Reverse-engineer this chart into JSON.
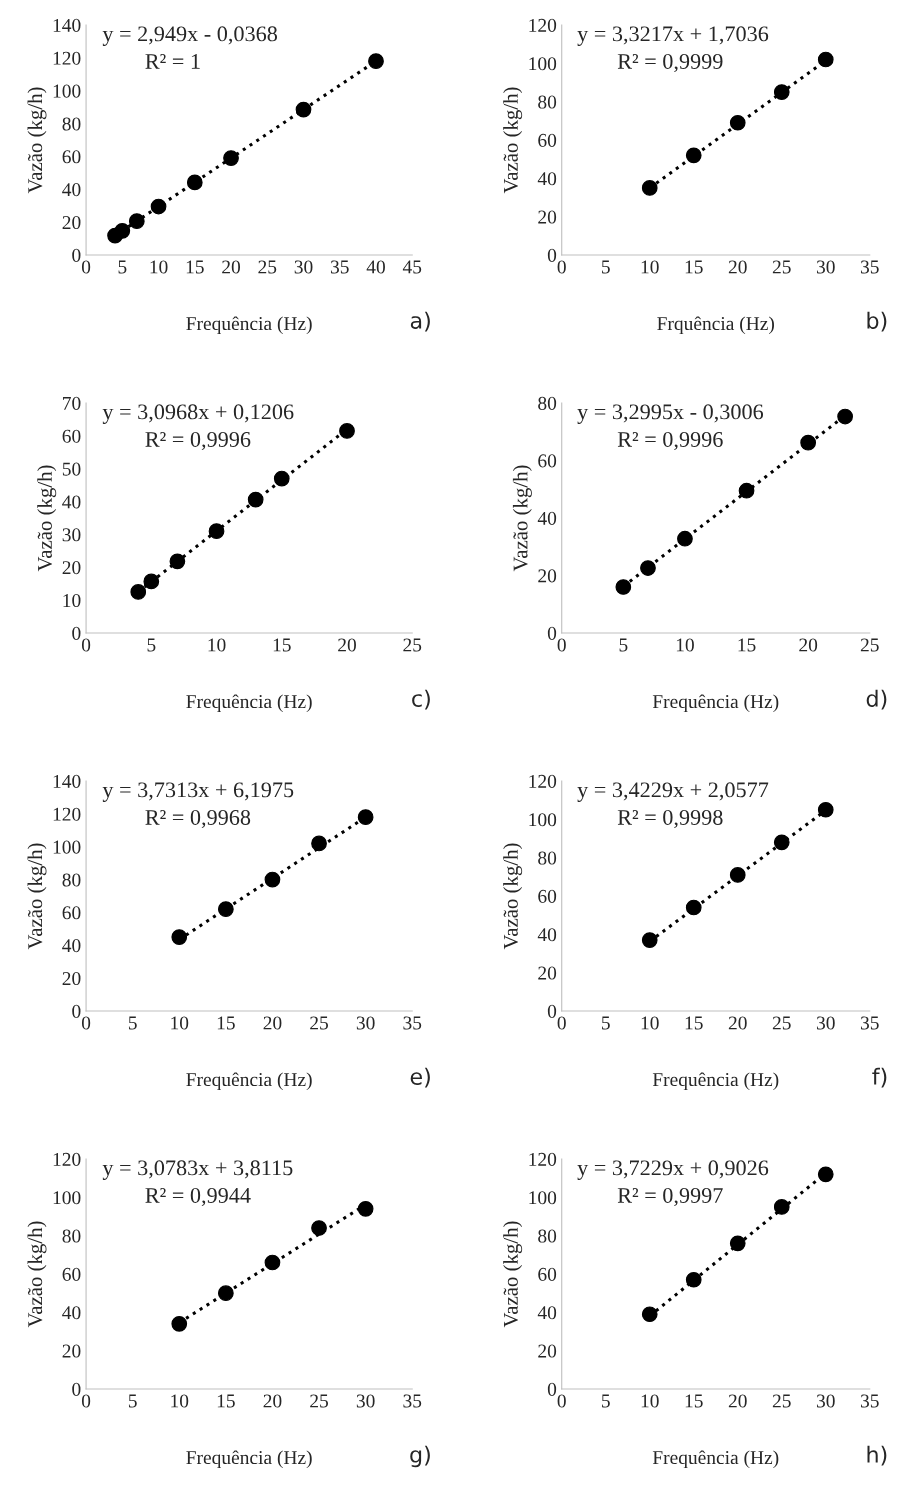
{
  "chart_data": [
    {
      "type": "scatter",
      "xlabel": "Frequência (Hz)",
      "ylabel": "Vazão (kg/h)",
      "xlim": [
        0,
        45
      ],
      "xticks": [
        0,
        5,
        10,
        15,
        20,
        25,
        30,
        35,
        40,
        45
      ],
      "ylim": [
        0,
        140
      ],
      "yticks": [
        0,
        20,
        40,
        60,
        80,
        100,
        120,
        140
      ],
      "grid": false,
      "legend": false,
      "annotations": [
        "y = 2,949x - 0,0368",
        "R² = 1",
        "a)"
      ],
      "series": [
        {
          "marker": "circle",
          "color": "#000000",
          "x": [
            4,
            5,
            7,
            10,
            15,
            20,
            30,
            40
          ],
          "values": [
            11.8,
            14.7,
            20.6,
            29.5,
            44.2,
            59,
            88.5,
            118
          ]
        },
        {
          "type": "line",
          "line_style": "dotted",
          "marker": "none",
          "color": "#000000",
          "x": [
            4,
            40
          ],
          "values": [
            11.8,
            118
          ]
        }
      ]
    },
    {
      "type": "scatter",
      "xlabel": "Frquência (Hz)",
      "ylabel": "Vazão (kg/h)",
      "xlim": [
        0,
        35
      ],
      "xticks": [
        0,
        5,
        10,
        15,
        20,
        25,
        30,
        35
      ],
      "ylim": [
        0,
        120
      ],
      "yticks": [
        0,
        20,
        40,
        60,
        80,
        100,
        120
      ],
      "grid": false,
      "legend": false,
      "annotations": [
        "y = 3,3217x + 1,7036",
        "R² = 0,9999",
        "b)"
      ],
      "series": [
        {
          "marker": "circle",
          "color": "#000000",
          "x": [
            10,
            15,
            20,
            25,
            30
          ],
          "values": [
            35,
            52,
            69,
            85,
            102
          ]
        },
        {
          "type": "line",
          "line_style": "dotted",
          "marker": "none",
          "color": "#000000",
          "x": [
            10,
            30
          ],
          "values": [
            35,
            101.4
          ]
        }
      ]
    },
    {
      "type": "scatter",
      "xlabel": "Frequência (Hz)",
      "ylabel": "Vazão (kg/h)",
      "xlim": [
        0,
        25
      ],
      "xticks": [
        0,
        5,
        10,
        15,
        20,
        25
      ],
      "ylim": [
        0,
        70
      ],
      "yticks": [
        0,
        10,
        20,
        30,
        40,
        50,
        60,
        70
      ],
      "grid": false,
      "legend": false,
      "annotations": [
        "y = 3,0968x + 0,1206",
        "R² = 0,9996",
        "c)"
      ],
      "series": [
        {
          "marker": "circle",
          "color": "#000000",
          "x": [
            4,
            5,
            7,
            10,
            13,
            15,
            20
          ],
          "values": [
            12.5,
            15.7,
            21.8,
            31,
            40.6,
            47,
            61.5
          ]
        },
        {
          "type": "line",
          "line_style": "dotted",
          "marker": "none",
          "color": "#000000",
          "x": [
            4,
            20
          ],
          "values": [
            12.5,
            62
          ]
        }
      ]
    },
    {
      "type": "scatter",
      "xlabel": "Frequência (Hz)",
      "ylabel": "Vazão (kg/h)",
      "xlim": [
        0,
        25
      ],
      "xticks": [
        0,
        5,
        10,
        15,
        20,
        25
      ],
      "ylim": [
        0,
        80
      ],
      "yticks": [
        0,
        20,
        40,
        60,
        80
      ],
      "grid": false,
      "legend": false,
      "annotations": [
        "y = 3,2995x - 0,3006",
        "R² = 0,9996",
        "d)"
      ],
      "series": [
        {
          "marker": "circle",
          "color": "#000000",
          "x": [
            5,
            7,
            10,
            15,
            20,
            23
          ],
          "values": [
            16,
            22.6,
            32.8,
            49.5,
            66.2,
            75.3
          ]
        },
        {
          "type": "line",
          "line_style": "dotted",
          "marker": "none",
          "color": "#000000",
          "x": [
            5,
            23
          ],
          "values": [
            16.2,
            75.6
          ]
        }
      ]
    },
    {
      "type": "scatter",
      "xlabel": "Frequência (Hz)",
      "ylabel": "Vazão (kg/h)",
      "xlim": [
        0,
        35
      ],
      "xticks": [
        0,
        5,
        10,
        15,
        20,
        25,
        30,
        35
      ],
      "ylim": [
        0,
        140
      ],
      "yticks": [
        0,
        20,
        40,
        60,
        80,
        100,
        120,
        140
      ],
      "grid": false,
      "legend": false,
      "annotations": [
        "y = 3,7313x + 6,1975",
        "R² = 0,9968",
        "e)"
      ],
      "series": [
        {
          "marker": "circle",
          "color": "#000000",
          "x": [
            10,
            15,
            20,
            25,
            30
          ],
          "values": [
            45,
            62,
            80,
            102,
            118
          ]
        },
        {
          "type": "line",
          "line_style": "dotted",
          "marker": "none",
          "color": "#000000",
          "x": [
            10,
            30
          ],
          "values": [
            43.5,
            118
          ]
        }
      ]
    },
    {
      "type": "scatter",
      "xlabel": "Frequência (Hz)",
      "ylabel": "Vazão (kg/h)",
      "xlim": [
        0,
        35
      ],
      "xticks": [
        0,
        5,
        10,
        15,
        20,
        25,
        30,
        35
      ],
      "ylim": [
        0,
        120
      ],
      "yticks": [
        0,
        20,
        40,
        60,
        80,
        100,
        120
      ],
      "grid": false,
      "legend": false,
      "annotations": [
        "y = 3,4229x + 2,0577",
        "R² = 0,9998",
        "f)"
      ],
      "series": [
        {
          "marker": "circle",
          "color": "#000000",
          "x": [
            10,
            15,
            20,
            25,
            30
          ],
          "values": [
            37,
            54,
            71,
            88,
            105
          ]
        },
        {
          "type": "line",
          "line_style": "dotted",
          "marker": "none",
          "color": "#000000",
          "x": [
            10,
            30
          ],
          "values": [
            36.3,
            104.7
          ]
        }
      ]
    },
    {
      "type": "scatter",
      "xlabel": "Frequência (Hz)",
      "ylabel": "Vazão (kg/h)",
      "xlim": [
        0,
        35
      ],
      "xticks": [
        0,
        5,
        10,
        15,
        20,
        25,
        30,
        35
      ],
      "ylim": [
        0,
        120
      ],
      "yticks": [
        0,
        20,
        40,
        60,
        80,
        100,
        120
      ],
      "grid": false,
      "legend": false,
      "annotations": [
        "y = 3,0783x + 3,8115",
        "R² = 0,9944",
        "g)"
      ],
      "series": [
        {
          "marker": "circle",
          "color": "#000000",
          "x": [
            10,
            15,
            20,
            25,
            30
          ],
          "values": [
            34,
            50,
            66,
            84,
            94
          ]
        },
        {
          "type": "line",
          "line_style": "dotted",
          "marker": "none",
          "color": "#000000",
          "x": [
            10,
            30
          ],
          "values": [
            34.6,
            96.2
          ]
        }
      ]
    },
    {
      "type": "scatter",
      "xlabel": "Frequência (Hz)",
      "ylabel": "Vazão (kg/h)",
      "xlim": [
        0,
        35
      ],
      "xticks": [
        0,
        5,
        10,
        15,
        20,
        25,
        30,
        35
      ],
      "ylim": [
        0,
        120
      ],
      "yticks": [
        0,
        20,
        40,
        60,
        80,
        100,
        120
      ],
      "grid": false,
      "legend": false,
      "annotations": [
        "y = 3,7229x + 0,9026",
        "R² = 0,9997",
        "h)"
      ],
      "series": [
        {
          "marker": "circle",
          "color": "#000000",
          "x": [
            10,
            15,
            20,
            25,
            30
          ],
          "values": [
            39,
            57,
            76,
            95,
            112
          ]
        },
        {
          "type": "line",
          "line_style": "dotted",
          "marker": "none",
          "color": "#000000",
          "x": [
            10,
            30
          ],
          "values": [
            38.1,
            112.6
          ]
        }
      ]
    }
  ]
}
